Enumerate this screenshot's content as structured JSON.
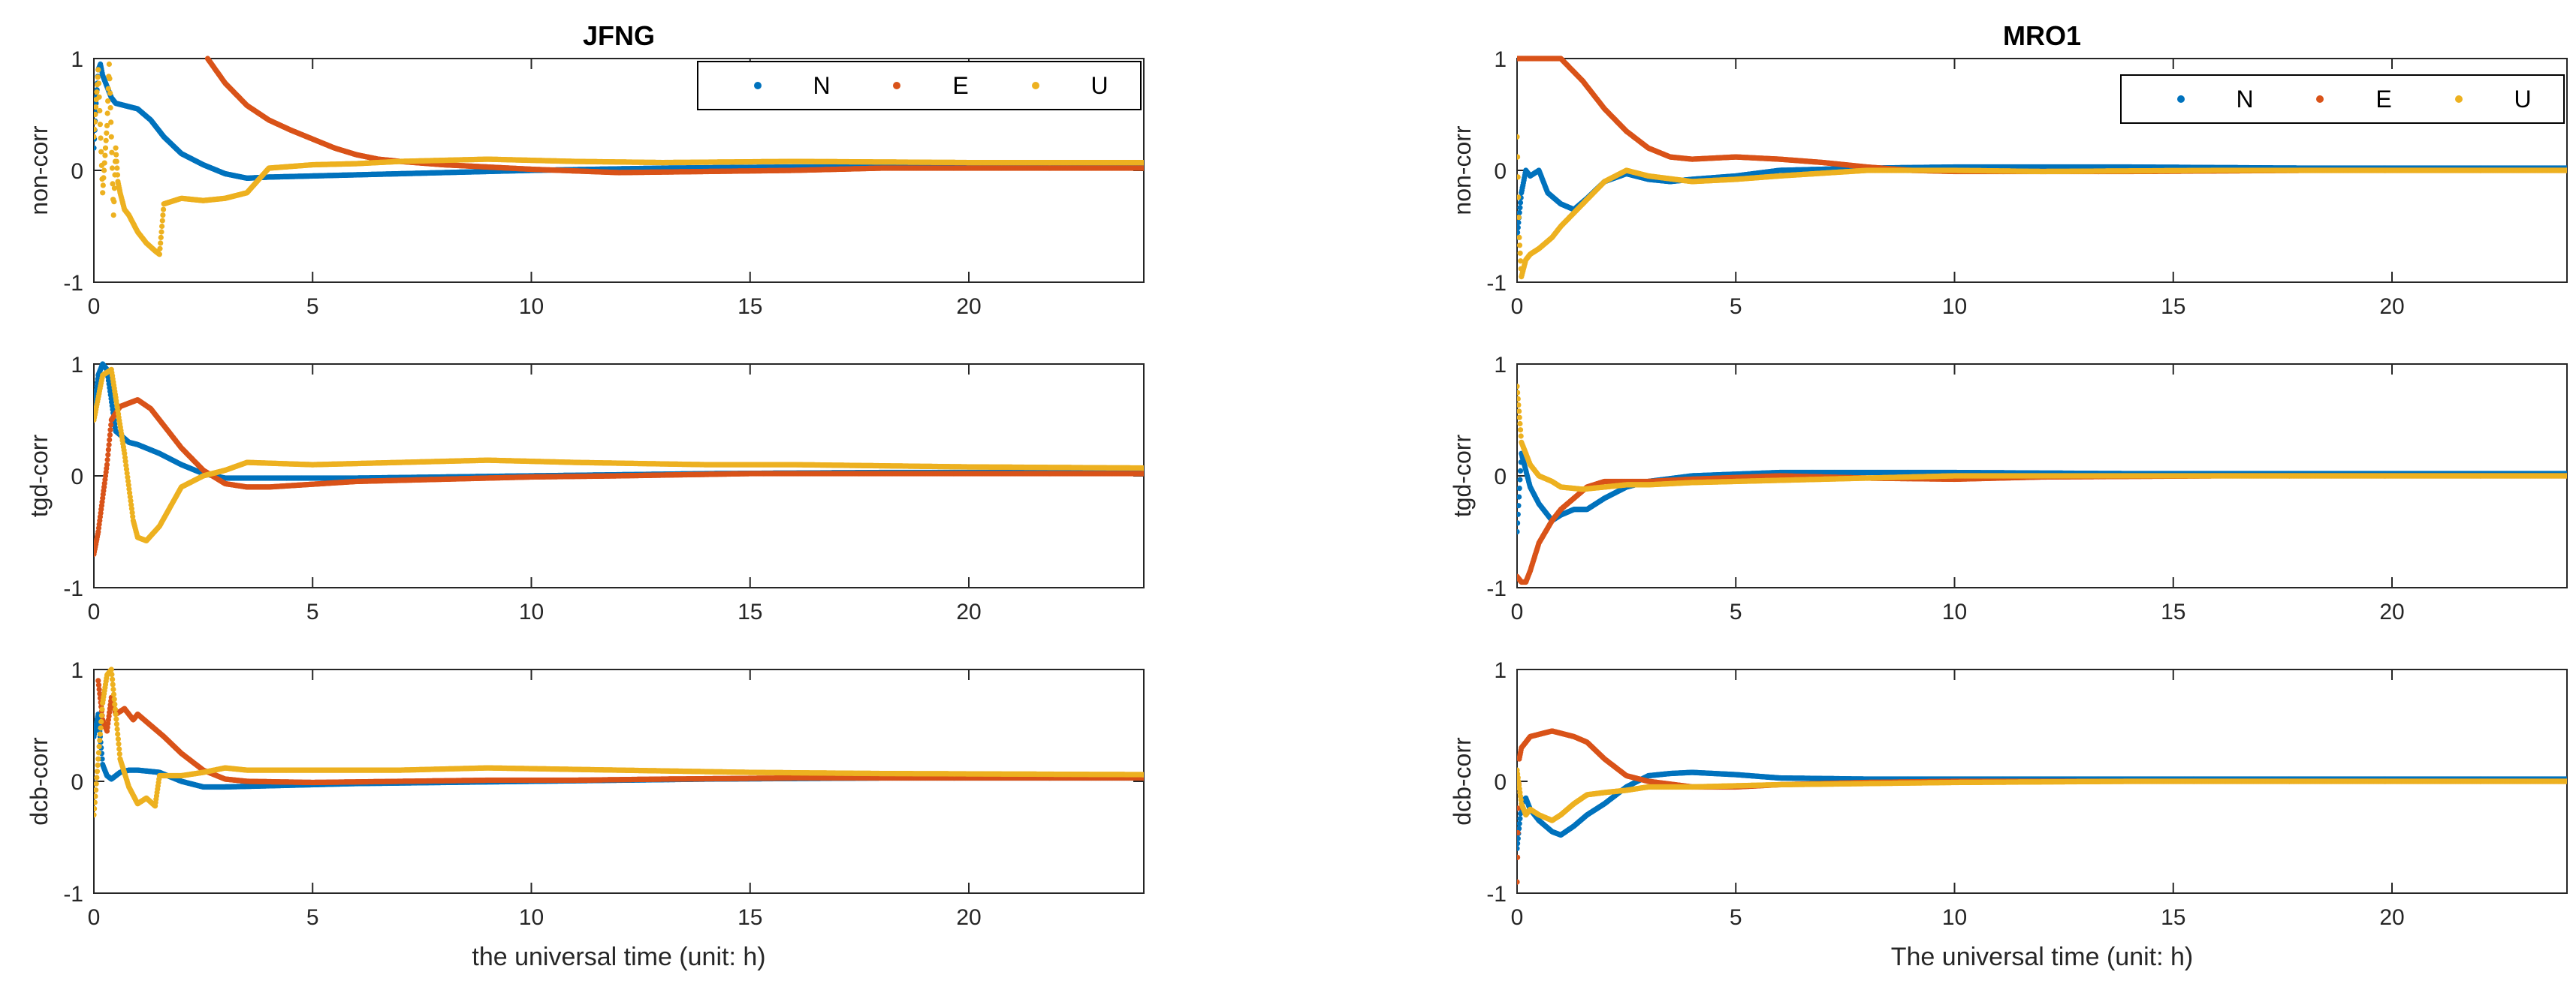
{
  "figure": {
    "background": "#ffffff",
    "axis_color": "#262626"
  },
  "series_colors": {
    "N": "#0072BD",
    "E": "#D95319",
    "U": "#EDB120"
  },
  "legend_labels": [
    "N",
    "E",
    "U"
  ],
  "chart_data": [
    {
      "type": "scatter",
      "station": "JFNG",
      "row": "non-corr",
      "title": "JFNG",
      "ylabel": "non-corr",
      "xlabel": "",
      "xlim": [
        0,
        24
      ],
      "ylim": [
        -1,
        1
      ],
      "xticks": [
        0,
        5,
        10,
        15,
        20
      ],
      "yticks": [
        -1,
        0,
        1
      ],
      "legend": "top-right",
      "series": [
        {
          "name": "N",
          "x": [
            0,
            0.05,
            0.1,
            0.15,
            0.2,
            0.3,
            0.4,
            0.5,
            0.7,
            1,
            1.3,
            1.6,
            2,
            2.5,
            3,
            3.5,
            4,
            6,
            8,
            10,
            13,
            16,
            20,
            24
          ],
          "y": [
            0.2,
            0.6,
            0.9,
            0.95,
            0.85,
            0.75,
            0.65,
            0.6,
            0.58,
            0.55,
            0.45,
            0.3,
            0.15,
            0.05,
            -0.03,
            -0.07,
            -0.06,
            -0.04,
            -0.02,
            0.0,
            0.02,
            0.03,
            0.03,
            0.03
          ]
        },
        {
          "name": "E",
          "x": [
            2.6,
            3,
            3.5,
            4,
            4.5,
            5,
            5.5,
            6,
            6.5,
            7,
            8,
            10,
            12,
            14,
            16,
            18,
            20,
            22,
            24
          ],
          "y": [
            1.0,
            0.78,
            0.58,
            0.45,
            0.36,
            0.28,
            0.2,
            0.14,
            0.1,
            0.08,
            0.05,
            0.01,
            -0.02,
            -0.01,
            0.0,
            0.02,
            0.02,
            0.02,
            0.02
          ]
        },
        {
          "name": "U",
          "x": [
            0,
            0.1,
            0.2,
            0.3,
            0.35,
            0.4,
            0.45,
            0.5,
            0.55,
            0.6,
            0.7,
            0.8,
            1,
            1.2,
            1.4,
            1.5,
            1.6,
            2,
            2.5,
            3,
            3.5,
            4,
            5,
            6,
            7,
            9,
            11,
            13,
            16,
            20,
            24
          ],
          "y": [
            0.3,
            0.9,
            -0.2,
            0.4,
            0.95,
            0.3,
            -0.4,
            0.2,
            -0.1,
            -0.2,
            -0.35,
            -0.4,
            -0.55,
            -0.65,
            -0.72,
            -0.75,
            -0.3,
            -0.25,
            -0.27,
            -0.25,
            -0.2,
            0.02,
            0.05,
            0.06,
            0.08,
            0.1,
            0.08,
            0.07,
            0.08,
            0.07,
            0.07
          ]
        }
      ]
    },
    {
      "type": "scatter",
      "station": "JFNG",
      "row": "tgd-corr",
      "ylabel": "tgd-corr",
      "xlabel": "",
      "xlim": [
        0,
        24
      ],
      "ylim": [
        -1,
        1
      ],
      "xticks": [
        0,
        5,
        10,
        15,
        20
      ],
      "yticks": [
        -1,
        0,
        1
      ],
      "series": [
        {
          "name": "N",
          "x": [
            0,
            0.1,
            0.2,
            0.3,
            0.5,
            0.8,
            1,
            1.5,
            2,
            2.5,
            3,
            4,
            6,
            8,
            10,
            14,
            18,
            24
          ],
          "y": [
            0.6,
            0.9,
            1.0,
            0.95,
            0.4,
            0.3,
            0.28,
            0.2,
            0.1,
            0.02,
            -0.02,
            -0.02,
            -0.02,
            -0.01,
            0.0,
            0.02,
            0.03,
            0.03
          ]
        },
        {
          "name": "E",
          "x": [
            0,
            0.1,
            0.2,
            0.3,
            0.4,
            0.6,
            0.8,
            1,
            1.3,
            1.6,
            2,
            2.5,
            3,
            3.5,
            4,
            6,
            8,
            10,
            12,
            15,
            18,
            20,
            24
          ],
          "y": [
            -0.7,
            -0.5,
            -0.2,
            0.1,
            0.5,
            0.62,
            0.65,
            0.68,
            0.6,
            0.45,
            0.25,
            0.05,
            -0.07,
            -0.1,
            -0.1,
            -0.05,
            -0.03,
            -0.01,
            0.0,
            0.02,
            0.02,
            0.02,
            0.02
          ]
        },
        {
          "name": "U",
          "x": [
            0,
            0.2,
            0.4,
            0.5,
            0.7,
            0.9,
            1,
            1.2,
            1.5,
            2,
            2.5,
            3,
            3.5,
            5,
            7,
            9,
            11,
            14,
            16,
            20,
            24
          ],
          "y": [
            0.5,
            0.9,
            0.95,
            0.7,
            0.2,
            -0.4,
            -0.55,
            -0.58,
            -0.45,
            -0.1,
            0.0,
            0.05,
            0.12,
            0.1,
            0.12,
            0.14,
            0.12,
            0.1,
            0.1,
            0.08,
            0.07
          ]
        }
      ]
    },
    {
      "type": "scatter",
      "station": "JFNG",
      "row": "dcb-corr",
      "ylabel": "dcb-corr",
      "xlabel": "the universal time (unit: h)",
      "xlim": [
        0,
        24
      ],
      "ylim": [
        -1,
        1
      ],
      "xticks": [
        0,
        5,
        10,
        15,
        20
      ],
      "yticks": [
        -1,
        0,
        1
      ],
      "series": [
        {
          "name": "N",
          "x": [
            0,
            0.1,
            0.2,
            0.3,
            0.4,
            0.6,
            0.8,
            1,
            1.5,
            2,
            2.5,
            3,
            4,
            6,
            8,
            10,
            14,
            18,
            24
          ],
          "y": [
            0.4,
            0.6,
            0.15,
            0.05,
            0.02,
            0.08,
            0.1,
            0.1,
            0.08,
            0.0,
            -0.05,
            -0.05,
            -0.04,
            -0.02,
            -0.01,
            0.0,
            0.02,
            0.03,
            0.03
          ]
        },
        {
          "name": "E",
          "x": [
            0.1,
            0.2,
            0.3,
            0.4,
            0.5,
            0.7,
            0.9,
            1,
            1.3,
            1.6,
            2,
            2.5,
            3,
            3.5,
            5,
            7,
            9,
            11,
            13,
            16,
            20,
            24
          ],
          "y": [
            0.9,
            0.55,
            0.45,
            0.75,
            0.6,
            0.65,
            0.55,
            0.6,
            0.5,
            0.4,
            0.25,
            0.1,
            0.02,
            0.0,
            -0.01,
            0.0,
            0.01,
            0.01,
            0.02,
            0.03,
            0.03,
            0.03
          ]
        },
        {
          "name": "U",
          "x": [
            0,
            0.1,
            0.2,
            0.3,
            0.4,
            0.5,
            0.6,
            0.8,
            1,
            1.2,
            1.4,
            1.5,
            2,
            2.5,
            3,
            3.5,
            5,
            7,
            9,
            12,
            15,
            18,
            24
          ],
          "y": [
            -0.3,
            0.2,
            0.7,
            0.95,
            1.0,
            0.6,
            0.2,
            -0.05,
            -0.2,
            -0.15,
            -0.22,
            0.05,
            0.05,
            0.08,
            0.12,
            0.1,
            0.1,
            0.1,
            0.12,
            0.1,
            0.08,
            0.07,
            0.06
          ]
        }
      ]
    },
    {
      "type": "scatter",
      "station": "MRO1",
      "row": "non-corr",
      "title": "MRO1",
      "ylabel": "non-corr",
      "xlabel": "",
      "xlim": [
        0,
        24
      ],
      "ylim": [
        -1,
        1
      ],
      "xticks": [
        0,
        5,
        10,
        15,
        20
      ],
      "yticks": [
        -1,
        0,
        1
      ],
      "legend": "top-right",
      "series": [
        {
          "name": "N",
          "x": [
            0,
            0.1,
            0.2,
            0.3,
            0.5,
            0.7,
            1,
            1.3,
            1.6,
            2,
            2.5,
            3,
            3.5,
            4,
            5,
            6,
            8,
            10,
            14,
            18,
            24
          ],
          "y": [
            -0.6,
            -0.2,
            0.0,
            -0.05,
            0.0,
            -0.2,
            -0.3,
            -0.35,
            -0.25,
            -0.1,
            -0.03,
            -0.08,
            -0.1,
            -0.08,
            -0.05,
            0.0,
            0.02,
            0.03,
            0.03,
            0.02,
            0.02
          ]
        },
        {
          "name": "E",
          "x": [
            0,
            1,
            1.5,
            2,
            2.5,
            3,
            3.5,
            4,
            5,
            6,
            7,
            8,
            9,
            10,
            14,
            18,
            24
          ],
          "y": [
            1.0,
            1.0,
            0.8,
            0.55,
            0.35,
            0.2,
            0.12,
            0.1,
            0.12,
            0.1,
            0.07,
            0.03,
            0.0,
            -0.01,
            -0.01,
            0.0,
            0.0
          ]
        },
        {
          "name": "U",
          "x": [
            0,
            0.05,
            0.1,
            0.2,
            0.3,
            0.5,
            0.8,
            1,
            1.5,
            2,
            2.5,
            3,
            4,
            5,
            6,
            8,
            10,
            12,
            16,
            20,
            24
          ],
          "y": [
            0.3,
            -0.6,
            -0.95,
            -0.8,
            -0.75,
            -0.7,
            -0.6,
            -0.5,
            -0.3,
            -0.1,
            0.0,
            -0.05,
            -0.1,
            -0.08,
            -0.05,
            0.0,
            0.0,
            -0.01,
            0.0,
            0.0,
            0.0
          ]
        }
      ]
    },
    {
      "type": "scatter",
      "station": "MRO1",
      "row": "tgd-corr",
      "ylabel": "tgd-corr",
      "xlabel": "",
      "xlim": [
        0,
        24
      ],
      "ylim": [
        -1,
        1
      ],
      "xticks": [
        0,
        5,
        10,
        15,
        20
      ],
      "yticks": [
        -1,
        0,
        1
      ],
      "series": [
        {
          "name": "N",
          "x": [
            0,
            0.1,
            0.2,
            0.3,
            0.5,
            0.8,
            1,
            1.3,
            1.6,
            2,
            2.5,
            3,
            4,
            6,
            8,
            10,
            14,
            18,
            24
          ],
          "y": [
            -0.5,
            0.2,
            0.05,
            -0.1,
            -0.25,
            -0.4,
            -0.35,
            -0.3,
            -0.3,
            -0.2,
            -0.1,
            -0.05,
            0.0,
            0.03,
            0.03,
            0.03,
            0.02,
            0.02,
            0.02
          ]
        },
        {
          "name": "E",
          "x": [
            0,
            0.1,
            0.2,
            0.3,
            0.5,
            0.8,
            1,
            1.3,
            1.6,
            2,
            2.5,
            3,
            4,
            6,
            8,
            10,
            12,
            16,
            20,
            24
          ],
          "y": [
            -0.9,
            -0.95,
            -0.95,
            -0.85,
            -0.6,
            -0.4,
            -0.3,
            -0.2,
            -0.1,
            -0.05,
            -0.05,
            -0.05,
            -0.03,
            0.0,
            -0.02,
            -0.03,
            -0.01,
            0.0,
            0.0,
            0.0
          ]
        },
        {
          "name": "U",
          "x": [
            0,
            0.1,
            0.2,
            0.3,
            0.5,
            0.8,
            1,
            1.5,
            2,
            2.5,
            3,
            4,
            6,
            8,
            10,
            14,
            18,
            24
          ],
          "y": [
            0.8,
            0.3,
            0.2,
            0.1,
            0.0,
            -0.05,
            -0.1,
            -0.12,
            -0.1,
            -0.08,
            -0.08,
            -0.06,
            -0.04,
            -0.02,
            0.0,
            0.0,
            0.0,
            0.0
          ]
        }
      ]
    },
    {
      "type": "scatter",
      "station": "MRO1",
      "row": "dcb-corr",
      "ylabel": "dcb-corr",
      "xlabel": "The universal time (unit: h)",
      "xlim": [
        0,
        24
      ],
      "ylim": [
        -1,
        1
      ],
      "xticks": [
        0,
        5,
        10,
        15,
        20
      ],
      "yticks": [
        -1,
        0,
        1
      ],
      "series": [
        {
          "name": "N",
          "x": [
            0,
            0.1,
            0.2,
            0.3,
            0.5,
            0.8,
            1,
            1.3,
            1.6,
            2,
            2.5,
            3,
            3.5,
            4,
            5,
            6,
            8,
            10,
            14,
            18,
            24
          ],
          "y": [
            -0.6,
            -0.2,
            -0.15,
            -0.25,
            -0.35,
            -0.45,
            -0.48,
            -0.4,
            -0.3,
            -0.2,
            -0.05,
            0.05,
            0.07,
            0.08,
            0.06,
            0.03,
            0.02,
            0.02,
            0.02,
            0.02,
            0.02
          ]
        },
        {
          "name": "E",
          "x": [
            0,
            0.05,
            0.1,
            0.2,
            0.3,
            0.5,
            0.8,
            1,
            1.3,
            1.6,
            2,
            2.5,
            3,
            4,
            5,
            6,
            8,
            10,
            14,
            18,
            24
          ],
          "y": [
            -0.9,
            0.2,
            0.3,
            0.35,
            0.4,
            0.42,
            0.45,
            0.43,
            0.4,
            0.35,
            0.2,
            0.05,
            0.0,
            -0.05,
            -0.05,
            -0.03,
            -0.01,
            0.0,
            0.0,
            0.0,
            0.0
          ]
        },
        {
          "name": "U",
          "x": [
            0,
            0.1,
            0.2,
            0.3,
            0.5,
            0.8,
            1,
            1.3,
            1.6,
            2,
            2.5,
            3,
            4,
            6,
            8,
            10,
            14,
            18,
            24
          ],
          "y": [
            0.1,
            -0.2,
            -0.3,
            -0.25,
            -0.3,
            -0.35,
            -0.3,
            -0.2,
            -0.12,
            -0.1,
            -0.08,
            -0.05,
            -0.05,
            -0.03,
            -0.02,
            -0.01,
            0.0,
            0.0,
            0.0
          ]
        }
      ]
    }
  ]
}
